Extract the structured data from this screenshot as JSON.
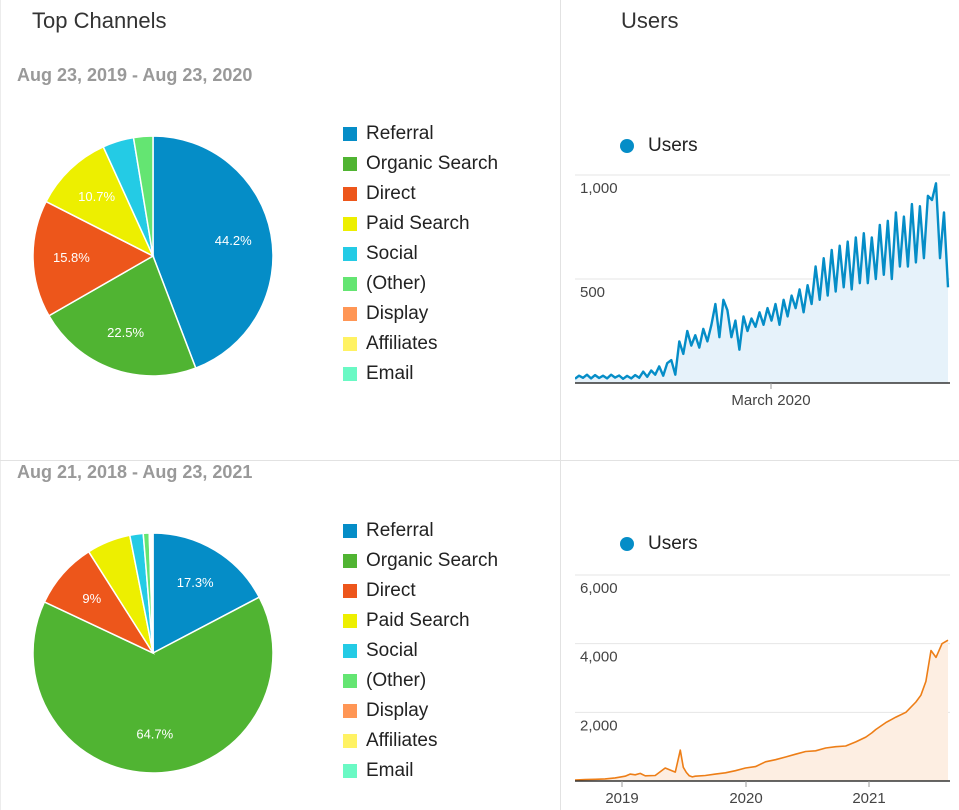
{
  "header": {
    "left_title": "Top Channels",
    "right_title": "Users"
  },
  "channels": [
    {
      "name": "Referral",
      "color": "#058dc7"
    },
    {
      "name": "Organic Search",
      "color": "#50b432"
    },
    {
      "name": "Direct",
      "color": "#ed561b"
    },
    {
      "name": "Paid Search",
      "color": "#edef00"
    },
    {
      "name": "Social",
      "color": "#24cbe5"
    },
    {
      "name": "(Other)",
      "color": "#64e572"
    },
    {
      "name": "Display",
      "color": "#ff9655"
    },
    {
      "name": "Affiliates",
      "color": "#fff263"
    },
    {
      "name": "Email",
      "color": "#6af9c4"
    }
  ],
  "top": {
    "date_range": "Aug 23, 2019 - Aug 23, 2020"
  },
  "bottom": {
    "date_range": "Aug 21, 2018 - Aug 23, 2021"
  },
  "chart_data": [
    {
      "type": "pie",
      "title": "Top Channels",
      "subtitle": "Aug 23, 2019 - Aug 23, 2020",
      "categories": [
        "Referral",
        "Organic Search",
        "Direct",
        "Paid Search",
        "Social",
        "(Other)",
        "Display",
        "Affiliates",
        "Email"
      ],
      "values": [
        44.2,
        22.5,
        15.8,
        10.7,
        4.2,
        2.6,
        0,
        0,
        0
      ],
      "labels": [
        "44.2%",
        "22.5%",
        "15.8%",
        "10.7%",
        "",
        "",
        "",
        "",
        ""
      ]
    },
    {
      "type": "pie",
      "title": "Top Channels",
      "subtitle": "Aug 21, 2018 - Aug 23, 2021",
      "categories": [
        "Referral",
        "Organic Search",
        "Direct",
        "Paid Search",
        "Social",
        "(Other)",
        "Display",
        "Affiliates",
        "Email"
      ],
      "values": [
        17.3,
        64.7,
        9,
        5.9,
        1.8,
        0.8,
        0.2,
        0.2,
        0.1
      ],
      "labels": [
        "17.3%",
        "64.7%",
        "9%",
        "",
        "",
        "",
        "",
        "",
        ""
      ]
    },
    {
      "type": "area",
      "title": "Users",
      "series": [
        {
          "name": "Users",
          "color": "#058dc7"
        }
      ],
      "x_tick_labels": [
        "March 2020"
      ],
      "y_ticks": [
        {
          "value": 500,
          "label": "500"
        },
        {
          "value": 1000,
          "label": "1,000"
        }
      ],
      "ylim": [
        0,
        1000
      ],
      "grid": true,
      "x": [
        0,
        4,
        8,
        12,
        16,
        20,
        24,
        28,
        32,
        36,
        40,
        44,
        48,
        52,
        56,
        60,
        64,
        68,
        72,
        76,
        80,
        84,
        88,
        92,
        96,
        100,
        104,
        108,
        112,
        116,
        120,
        124,
        128,
        132,
        136,
        140,
        144,
        148,
        152,
        156,
        160,
        164,
        168,
        172,
        176,
        180,
        184,
        188,
        192,
        196,
        200,
        204,
        208,
        212,
        216,
        220,
        224,
        228,
        232,
        236,
        240,
        244,
        248,
        252,
        256,
        260,
        264,
        268,
        272,
        276,
        280,
        284,
        288,
        292,
        296,
        300,
        304,
        308,
        312,
        316,
        320,
        324,
        328,
        332,
        336,
        340,
        344,
        348,
        352,
        356,
        360,
        364,
        368,
        372
      ],
      "values": [
        20,
        35,
        25,
        40,
        22,
        38,
        24,
        35,
        22,
        40,
        26,
        36,
        20,
        34,
        22,
        38,
        25,
        55,
        30,
        60,
        40,
        80,
        35,
        95,
        110,
        40,
        200,
        140,
        250,
        180,
        230,
        170,
        260,
        200,
        280,
        380,
        220,
        400,
        350,
        220,
        300,
        160,
        320,
        250,
        310,
        270,
        340,
        280,
        360,
        300,
        380,
        280,
        400,
        320,
        420,
        360,
        450,
        340,
        470,
        380,
        560,
        400,
        600,
        420,
        640,
        440,
        660,
        460,
        680,
        450,
        700,
        480,
        720,
        480,
        700,
        500,
        760,
        520,
        780,
        500,
        820,
        560,
        800,
        560,
        860,
        580,
        850,
        600,
        900,
        880,
        960,
        600,
        820,
        460
      ]
    },
    {
      "type": "area",
      "title": "Users",
      "series": [
        {
          "name": "Users",
          "color": "#ed7e17"
        }
      ],
      "x_tick_labels": [
        "2019",
        "2020",
        "2021"
      ],
      "y_ticks": [
        {
          "value": 2000,
          "label": "2,000"
        },
        {
          "value": 4000,
          "label": "4,000"
        },
        {
          "value": 6000,
          "label": "6,000"
        }
      ],
      "ylim": [
        0,
        6000
      ],
      "grid": true,
      "x": [
        0,
        10,
        20,
        30,
        40,
        50,
        55,
        60,
        65,
        70,
        80,
        90,
        100,
        105,
        108,
        111,
        114,
        117,
        120,
        130,
        140,
        150,
        160,
        170,
        180,
        190,
        200,
        210,
        220,
        230,
        240,
        250,
        260,
        270,
        280,
        290,
        296,
        300,
        310,
        320,
        330,
        340,
        345,
        350,
        355,
        360,
        366,
        372
      ],
      "values": [
        30,
        40,
        50,
        60,
        90,
        140,
        200,
        180,
        220,
        150,
        160,
        380,
        260,
        900,
        400,
        250,
        150,
        120,
        140,
        160,
        200,
        240,
        300,
        380,
        420,
        560,
        620,
        700,
        780,
        860,
        880,
        960,
        1000,
        1020,
        1140,
        1280,
        1400,
        1500,
        1700,
        1860,
        2000,
        2300,
        2500,
        2900,
        3800,
        3600,
        4000,
        4100
      ]
    }
  ]
}
